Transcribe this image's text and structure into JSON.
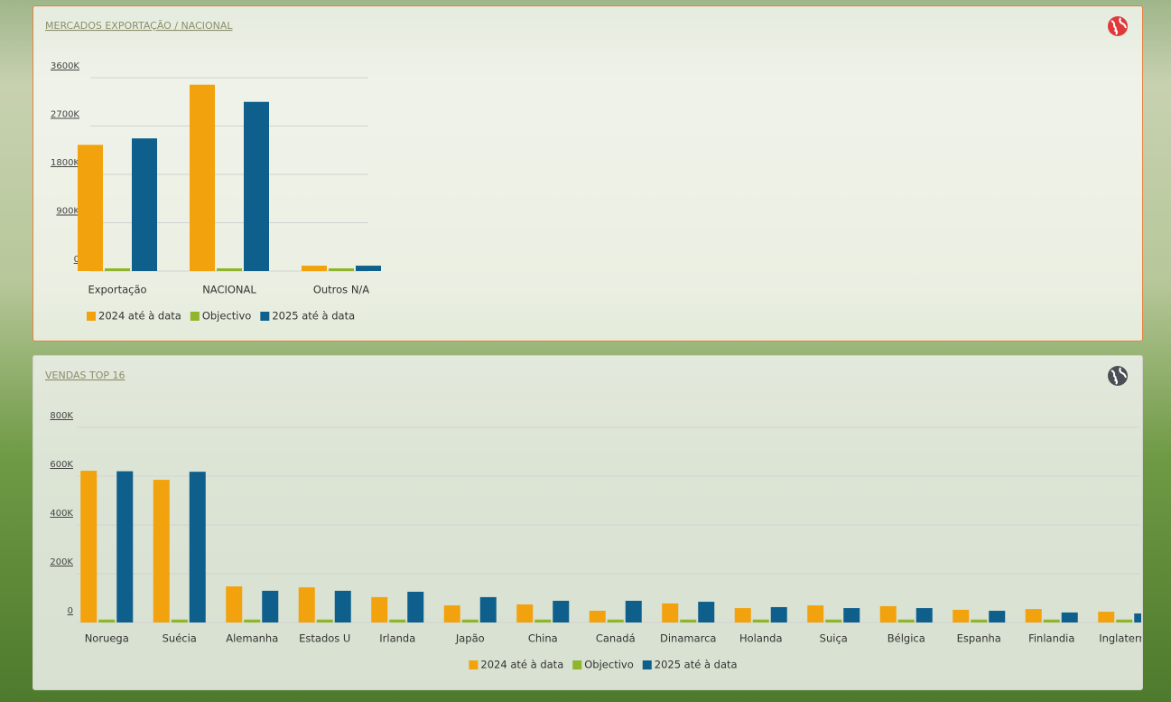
{
  "chart_data": [
    {
      "type": "bar",
      "title": "MERCADOS EXPORTAÇÃO / NACIONAL",
      "categories": [
        "Exportação",
        "NACIONAL",
        "Outros N/A"
      ],
      "series": [
        {
          "name": "2024 até à data",
          "color": "#f2a20c",
          "values": [
            2350000,
            3470000,
            100000
          ]
        },
        {
          "name": "Objectivo",
          "color": "#8fb52a",
          "values": [
            50000,
            50000,
            50000
          ]
        },
        {
          "name": "2025 até à data",
          "color": "#0f5f8c",
          "values": [
            2470000,
            3150000,
            100000
          ]
        }
      ],
      "ylim": [
        0,
        3600000
      ],
      "yticks": [
        {
          "value": 0,
          "label": "0"
        },
        {
          "value": 900000,
          "label": "900K"
        },
        {
          "value": 1800000,
          "label": "1800K"
        },
        {
          "value": 2700000,
          "label": "2700K"
        },
        {
          "value": 3600000,
          "label": "3600K"
        }
      ],
      "grid": true,
      "legend": "bottom-left"
    },
    {
      "type": "bar",
      "title": "VENDAS TOP 16",
      "categories": [
        "Noruega",
        "Suécia",
        "Alemanha",
        "Estados U",
        "Irlanda",
        "Japão",
        "China",
        "Canadá",
        "Dinamarca",
        "Holanda",
        "Suiça",
        "Bélgica",
        "Espanha",
        "Finlandia",
        "Inglaterra"
      ],
      "series": [
        {
          "name": "2024 até à data",
          "color": "#f2a20c",
          "values": [
            622000,
            585000,
            148000,
            144000,
            104000,
            70000,
            74000,
            48000,
            78000,
            59000,
            70000,
            67000,
            52000,
            55000,
            44000
          ]
        },
        {
          "name": "Objectivo",
          "color": "#8fb52a",
          "values": [
            12000,
            12000,
            12000,
            12000,
            12000,
            12000,
            12000,
            12000,
            12000,
            12000,
            12000,
            12000,
            12000,
            12000,
            12000
          ]
        },
        {
          "name": "2025 até à data",
          "color": "#0f5f8c",
          "values": [
            620000,
            618000,
            130000,
            130000,
            126000,
            104000,
            89000,
            89000,
            85000,
            63000,
            59000,
            59000,
            48000,
            41000,
            37000
          ]
        }
      ],
      "ylim": [
        0,
        800000
      ],
      "yticks": [
        {
          "value": 0,
          "label": "0"
        },
        {
          "value": 200000,
          "label": "200K"
        },
        {
          "value": 400000,
          "label": "400K"
        },
        {
          "value": 600000,
          "label": "600K"
        },
        {
          "value": 800000,
          "label": "800K"
        }
      ],
      "grid": true,
      "legend": "bottom-center"
    }
  ]
}
